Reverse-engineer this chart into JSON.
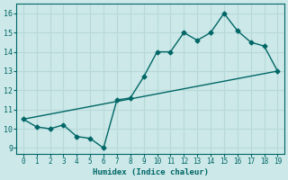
{
  "xlabel": "Humidex (Indice chaleur)",
  "ylabel": "",
  "xlim": [
    -0.5,
    19.5
  ],
  "ylim": [
    8.7,
    16.5
  ],
  "yticks": [
    9,
    10,
    11,
    12,
    13,
    14,
    15,
    16
  ],
  "xticks": [
    0,
    1,
    2,
    3,
    4,
    5,
    6,
    7,
    8,
    9,
    10,
    11,
    12,
    13,
    14,
    15,
    16,
    17,
    18,
    19
  ],
  "bg_color": "#cce8e8",
  "grid_color": "#b8d8d8",
  "line_color": "#006666",
  "data_x": [
    0,
    1,
    2,
    3,
    4,
    5,
    6,
    7,
    8,
    9,
    10,
    11,
    12,
    13,
    14,
    15,
    16,
    17,
    18,
    19
  ],
  "data_y": [
    10.5,
    10.1,
    10.0,
    10.2,
    9.6,
    9.5,
    9.0,
    11.5,
    11.6,
    12.7,
    14.0,
    14.0,
    15.0,
    14.6,
    15.0,
    16.0,
    15.1,
    14.5,
    14.3,
    13.0
  ],
  "trend_x": [
    0,
    19
  ],
  "trend_y": [
    10.5,
    13.0
  ],
  "marker": "D",
  "marker_size": 2.5,
  "line_width": 1.0
}
